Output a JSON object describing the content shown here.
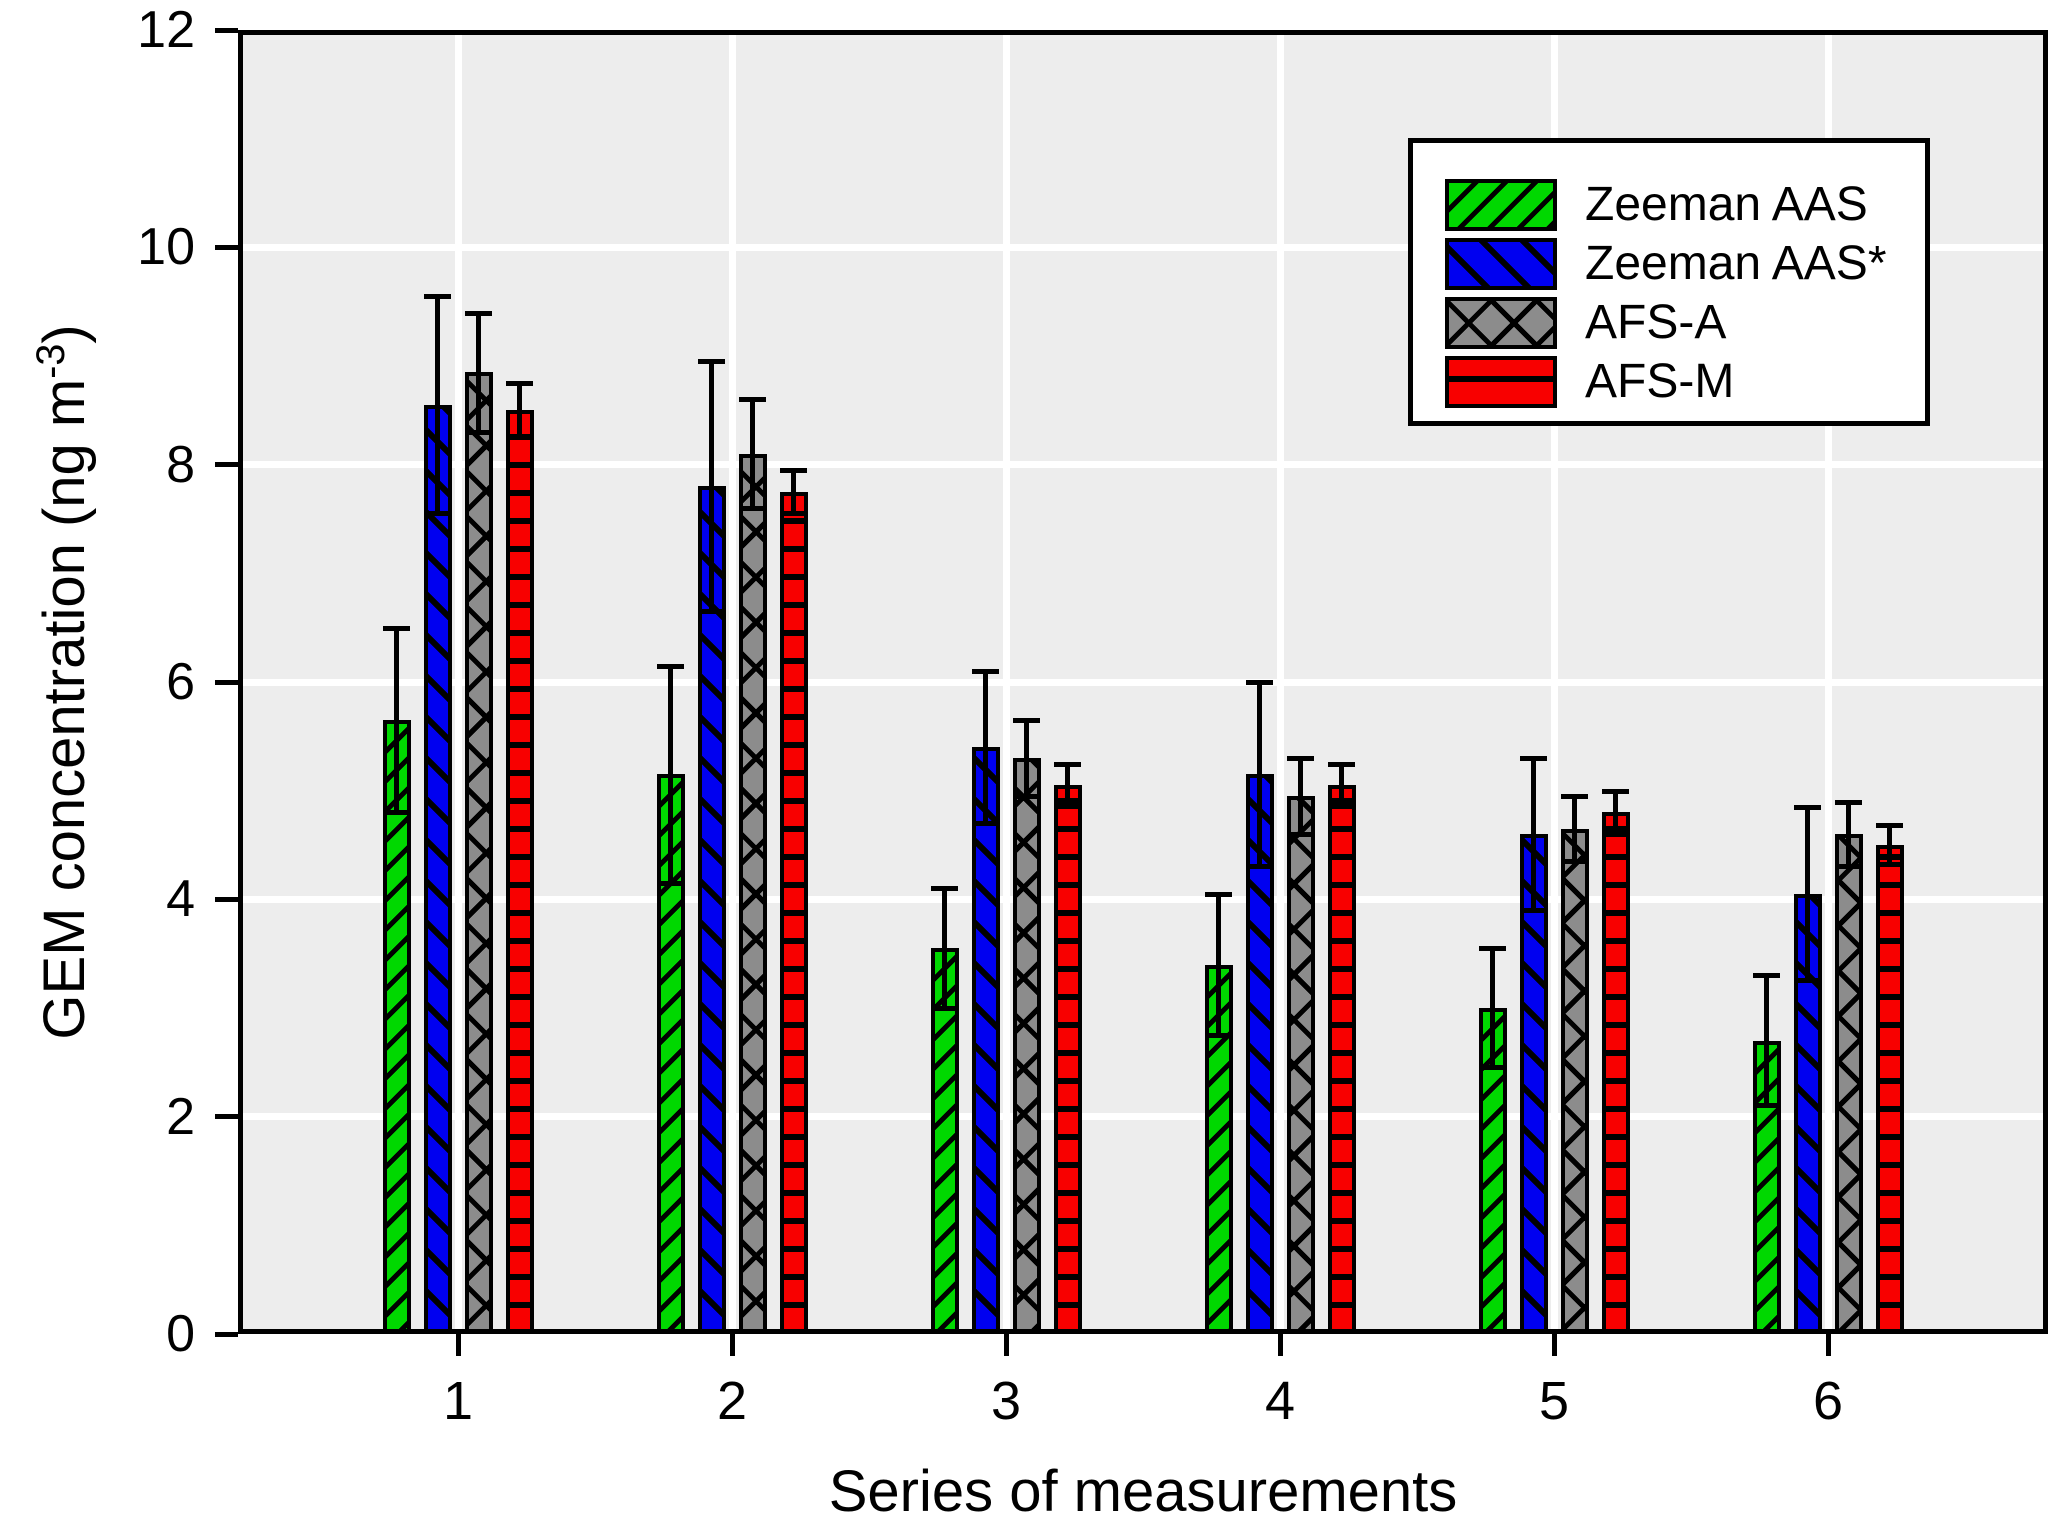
{
  "chart_data": {
    "type": "bar",
    "title": "",
    "xlabel": "Series of measurements",
    "ylabel": "GEM concentration (ng m-3)",
    "ylabel_parts": {
      "pre": "GEM concentration (ng m",
      "sup": "-3",
      "post": ")"
    },
    "categories": [
      "1",
      "2",
      "3",
      "4",
      "5",
      "6"
    ],
    "yticks": [
      0,
      2,
      4,
      6,
      8,
      10,
      12
    ],
    "ylim": [
      0,
      12
    ],
    "grid": true,
    "legend_position": "top-right",
    "plot_background": "#EDEDED",
    "grid_color": "#FFFFFF",
    "series": [
      {
        "name": "Zeeman AAS",
        "color": "#00D800",
        "hatch": "diagonal-up",
        "values": [
          5.65,
          5.15,
          3.55,
          3.4,
          3.0,
          2.7
        ],
        "errors": [
          0.85,
          1.0,
          0.55,
          0.65,
          0.55,
          0.6
        ]
      },
      {
        "name": "Zeeman AAS*",
        "color": "#0000F0",
        "hatch": "diagonal-down",
        "values": [
          8.55,
          7.8,
          5.4,
          5.15,
          4.6,
          4.05
        ],
        "errors": [
          1.0,
          1.15,
          0.7,
          0.85,
          0.7,
          0.8
        ]
      },
      {
        "name": "AFS-A",
        "color": "#8C8C8C",
        "hatch": "cross",
        "values": [
          8.85,
          8.1,
          5.3,
          4.95,
          4.65,
          4.6
        ],
        "errors": [
          0.55,
          0.5,
          0.35,
          0.35,
          0.3,
          0.3
        ]
      },
      {
        "name": "AFS-M",
        "color": "#F80000",
        "hatch": "horizontal",
        "values": [
          8.5,
          7.75,
          5.05,
          5.05,
          4.8,
          4.5
        ],
        "errors": [
          0.25,
          0.2,
          0.2,
          0.2,
          0.2,
          0.18
        ]
      }
    ]
  }
}
